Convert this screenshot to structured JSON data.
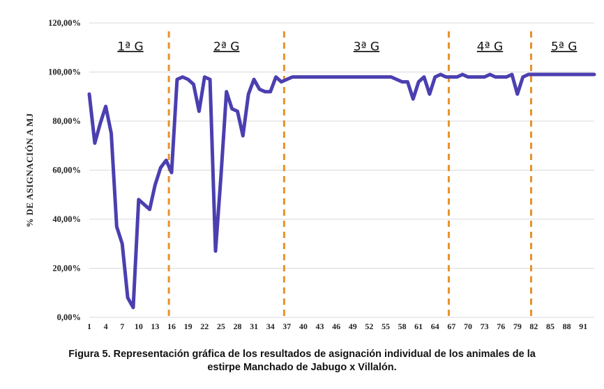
{
  "chart_data": {
    "type": "line",
    "title": "",
    "ylabel": "% DE ASIGNACIÓN A MJ",
    "xlabel": "",
    "ylim": [
      0,
      120
    ],
    "xlim": [
      1,
      93
    ],
    "y_ticks": [
      "0,00%",
      "20,00%",
      "40,00%",
      "60,00%",
      "80,00%",
      "100,00%",
      "120,00%"
    ],
    "y_tick_values": [
      0,
      20,
      40,
      60,
      80,
      100,
      120
    ],
    "x_ticks": [
      "1",
      "4",
      "7",
      "10",
      "13",
      "16",
      "19",
      "22",
      "25",
      "28",
      "31",
      "34",
      "37",
      "40",
      "43",
      "46",
      "49",
      "52",
      "55",
      "58",
      "61",
      "64",
      "67",
      "70",
      "73",
      "76",
      "79",
      "82",
      "85",
      "88",
      "91"
    ],
    "x_tick_values": [
      1,
      4,
      7,
      10,
      13,
      16,
      19,
      22,
      25,
      28,
      31,
      34,
      37,
      40,
      43,
      46,
      49,
      52,
      55,
      58,
      61,
      64,
      67,
      70,
      73,
      76,
      79,
      82,
      85,
      88,
      91
    ],
    "grid": "horizontal",
    "line_color": "#4b3fb0",
    "divider_color": "#e8922a",
    "dividers_at": [
      15.5,
      36.5,
      66.5,
      81.5
    ],
    "groups": [
      {
        "label": "1ª G",
        "center": 8.5
      },
      {
        "label": "2ª G",
        "center": 26
      },
      {
        "label": "3ª G",
        "center": 51.5
      },
      {
        "label": "4ª G",
        "center": 74
      },
      {
        "label": "5ª G",
        "center": 87.5
      }
    ],
    "series": [
      {
        "x": [
          1,
          2,
          3,
          4,
          5,
          6,
          7,
          8,
          9,
          10,
          11,
          12,
          13,
          14,
          15,
          16,
          17,
          18,
          19,
          20,
          21,
          22,
          23,
          24,
          25,
          26,
          27,
          28,
          29,
          30,
          31,
          32,
          33,
          34,
          35,
          36,
          37,
          38,
          39,
          40,
          41,
          42,
          43,
          44,
          45,
          46,
          47,
          48,
          49,
          50,
          51,
          52,
          53,
          54,
          55,
          56,
          57,
          58,
          59,
          60,
          61,
          62,
          63,
          64,
          65,
          66,
          67,
          68,
          69,
          70,
          71,
          72,
          73,
          74,
          75,
          76,
          77,
          78,
          79,
          80,
          81,
          82,
          83,
          84,
          85,
          86,
          87,
          88,
          89,
          90,
          91,
          92,
          93
        ],
        "values": [
          91,
          71,
          79,
          86,
          75,
          37,
          30,
          8,
          4,
          48,
          46,
          44,
          54,
          61,
          64,
          59,
          97,
          98,
          97,
          95,
          84,
          98,
          97,
          27,
          58,
          92,
          85,
          84,
          74,
          91,
          97,
          93,
          92,
          92,
          98,
          96,
          97,
          98,
          98,
          98,
          98,
          98,
          98,
          98,
          98,
          98,
          98,
          98,
          98,
          98,
          98,
          98,
          98,
          98,
          98,
          98,
          97,
          96,
          96,
          89,
          96,
          98,
          91,
          98,
          99,
          98,
          98,
          98,
          99,
          98,
          98,
          98,
          98,
          99,
          98,
          98,
          98,
          99,
          91,
          98,
          99,
          99,
          99,
          99,
          99,
          99,
          99,
          99,
          99,
          99,
          99,
          99,
          99
        ]
      }
    ]
  },
  "caption": {
    "line1": "Figura 5. Representación gráfica de los resultados de asignación individual de los animales de la",
    "line2": "estirpe Manchado de Jabugo x Villalón."
  }
}
